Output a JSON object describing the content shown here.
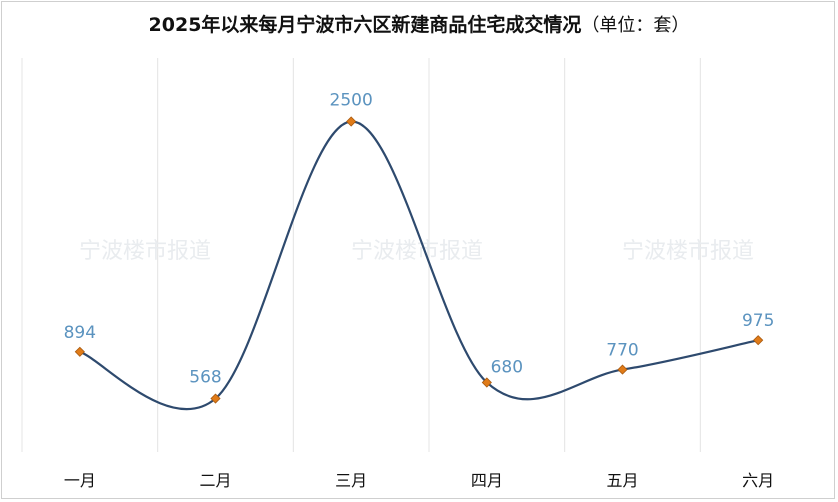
{
  "chart_data": {
    "type": "line",
    "title": "2025年以来每月宁波市六区新建商品住宅成交情况",
    "subtitle": "（单位：套）",
    "categories": [
      "一月",
      "二月",
      "三月",
      "四月",
      "五月",
      "六月"
    ],
    "series": [
      {
        "values": [
          894,
          568,
          2500,
          680,
          770,
          975
        ]
      }
    ],
    "ylim": [
      0,
      2800
    ],
    "smooth": true,
    "vertical_grid": true,
    "data_labels": true,
    "watermark": "宁波楼市报道",
    "colors": {
      "line": "#2e4a6e",
      "marker": "#e07b18",
      "label": "#5b93bf",
      "grid": "#e4e4e4"
    }
  }
}
